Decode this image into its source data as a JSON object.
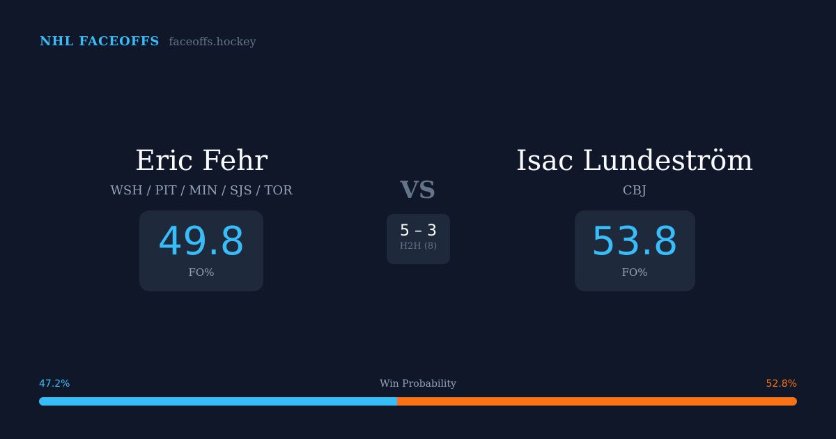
{
  "header": {
    "title": "NHL FACEOFFS",
    "url": "faceoffs.hockey"
  },
  "player1": {
    "name": "Eric Fehr",
    "teams": "WSH / PIT / MIN / SJS / TOR",
    "fo_pct": "49.8",
    "fo_label": "FO%"
  },
  "player2": {
    "name": "Isac Lundeström",
    "teams": "CBJ",
    "fo_pct": "53.8",
    "fo_label": "FO%"
  },
  "vs": "VS",
  "h2h": {
    "score": "5 – 3",
    "label": "H2H (8)"
  },
  "win_probability": {
    "label": "Win Probability",
    "left": "47.2%",
    "right": "52.8%",
    "left_value": 47.2,
    "right_value": 52.8,
    "left_color": "#38bdf8",
    "right_color": "#f97316"
  }
}
